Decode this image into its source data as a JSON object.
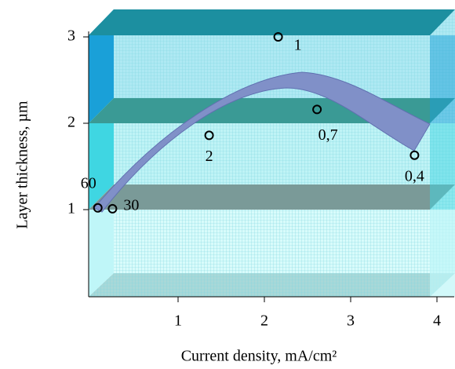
{
  "chart_data": {
    "type": "scatter",
    "x_label": "Current density, mA/cm²",
    "y_label": "Layer thickness, µm",
    "x": [
      0.07,
      0.24,
      1.36,
      2.16,
      2.61,
      3.74
    ],
    "values": [
      1.02,
      1.01,
      1.86,
      3.0,
      2.16,
      1.63
    ],
    "point_labels": [
      "60",
      "30",
      "2",
      "1",
      "0,7",
      "0,4"
    ],
    "color": "#000000",
    "xlim": [
      0,
      4.2
    ],
    "ylim": [
      0,
      3.3
    ],
    "xticks": [
      1,
      2,
      3,
      4
    ],
    "yticks": [
      1,
      2,
      3
    ]
  }
}
